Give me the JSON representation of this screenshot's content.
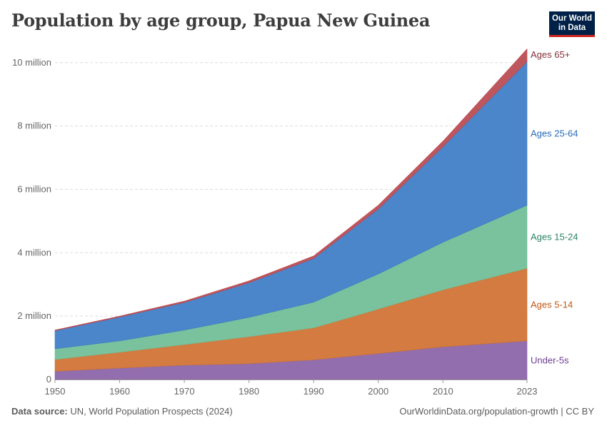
{
  "title": "Population by age group, Papua New Guinea",
  "logo": {
    "line1": "Our World",
    "line2": "in Data"
  },
  "footer": {
    "source_label": "Data source:",
    "source_text": "UN, World Population Prospects (2024)",
    "url": "OurWorldinData.org/population-growth | CC BY"
  },
  "chart_data": {
    "type": "area",
    "stacked": true,
    "x": [
      1950,
      1960,
      1970,
      1980,
      1990,
      2000,
      2010,
      2023
    ],
    "xticks": [
      "1950",
      "1960",
      "1970",
      "1980",
      "1990",
      "2000",
      "2010",
      "2023"
    ],
    "ylim": [
      0,
      10400000
    ],
    "yticks": [
      {
        "value": 0,
        "label": "0"
      },
      {
        "value": 2000000,
        "label": "2 million"
      },
      {
        "value": 4000000,
        "label": "4 million"
      },
      {
        "value": 6000000,
        "label": "6 million"
      },
      {
        "value": 8000000,
        "label": "8 million"
      },
      {
        "value": 10000000,
        "label": "10 million"
      }
    ],
    "grid": true,
    "series": [
      {
        "name": "Under-5s",
        "color": "#8962a8",
        "label_color": "#6d3e91",
        "values": [
          260000,
          360000,
          450000,
          500000,
          620000,
          820000,
          1030000,
          1220000
        ]
      },
      {
        "name": "Ages 5-14",
        "color": "#cf7030",
        "label_color": "#c05917",
        "values": [
          370000,
          500000,
          650000,
          850000,
          1010000,
          1400000,
          1800000,
          2290000
        ]
      },
      {
        "name": "Ages 15-24",
        "color": "#6ebd95",
        "label_color": "#2c8465",
        "values": [
          340000,
          360000,
          460000,
          610000,
          810000,
          1110000,
          1500000,
          1990000
        ]
      },
      {
        "name": "Ages 25-64",
        "color": "#3c7bc6",
        "label_color": "#286bbb",
        "values": [
          570000,
          750000,
          870000,
          1090000,
          1380000,
          2050000,
          3020000,
          4530000
        ]
      },
      {
        "name": "Ages 65+",
        "color": "#b9484f",
        "label_color": "#883039",
        "values": [
          20000,
          30000,
          45000,
          60000,
          80000,
          120000,
          170000,
          400000
        ]
      }
    ]
  }
}
